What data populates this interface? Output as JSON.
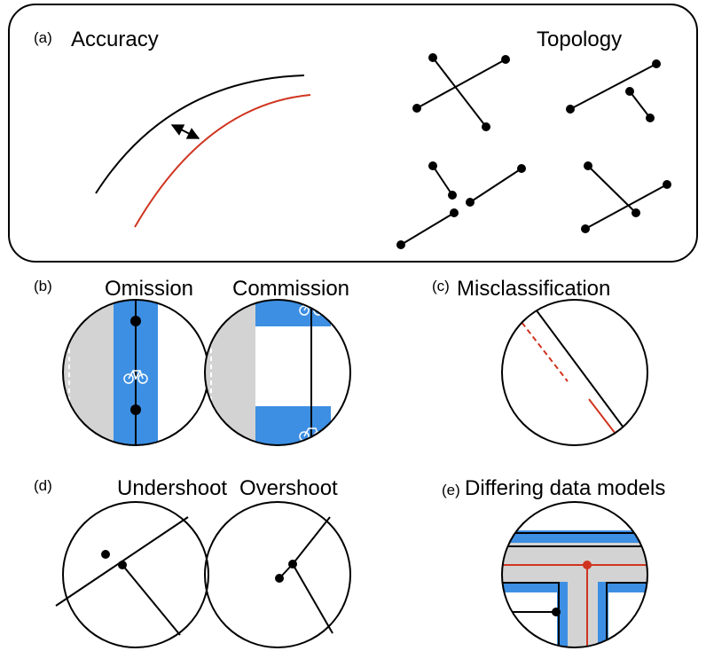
{
  "panels": {
    "a": {
      "label": "(a)",
      "accuracy": "Accuracy",
      "topology": "Topology"
    },
    "b": {
      "label": "(b)",
      "omission": "Omission",
      "commission": "Commission"
    },
    "c": {
      "label": "(c)",
      "title": "Misclassification"
    },
    "d": {
      "label": "(d)",
      "undershoot": "Undershoot",
      "overshoot": "Overshoot"
    },
    "e": {
      "label": "(e)",
      "title": "Differing data models"
    }
  }
}
